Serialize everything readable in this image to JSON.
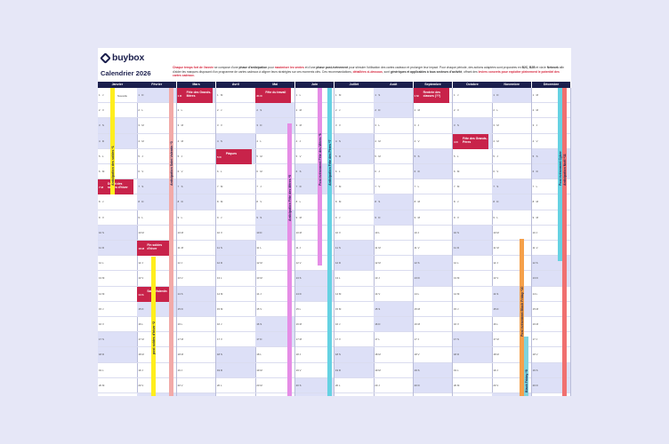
{
  "brand": {
    "name": "buybox"
  },
  "title": "Calendrier 2026",
  "intro": {
    "p1_red": "Chaque temps fort de l'année",
    "p1_a": " se compose d'une ",
    "p1_b": "phase d'anticipation",
    "p1_c": " pour ",
    "p1_red2": "maximiser les ventes",
    "p1_d": " et d'une ",
    "p1_e": "phase post-événement",
    "p1_f": " pour stimuler l'utilisation des cartes cadeaux et prolonger leur impact. Pour chaque période, des actions adaptées sont proposées en ",
    "p1_g": "B2C, B2B",
    "p1_h": " et via le ",
    "p1_i": "Network",
    "p1_j": " afin d'aider les marques disposant d'un programme de cartes cadeaux à aligner leurs stratégies sur ces moments clés. Ces recommandations, ",
    "p1_red3": "détaillées ci-dessous",
    "p1_k": ", sont ",
    "p1_l": "génériques et applicables à tous secteurs d'activité",
    "p1_m": ", offrant des ",
    "p1_red4": "leviers concrets pour exploiter pleinement le potentiel des cartes cadeaux."
  },
  "months": [
    "Janvier",
    "Février",
    "Mars",
    "Avril",
    "Mai",
    "Juin",
    "Juillet",
    "Août",
    "Septembre",
    "Octobre",
    "Novembre",
    "Décembre"
  ],
  "notes": {
    "jan1": "Nouvelle"
  },
  "events": [
    {
      "num": "1",
      "letter": "D",
      "label": "Fête des Grands-Mères"
    },
    {
      "num": "31",
      "letter": "D",
      "label": "Fête du travail"
    },
    {
      "num": "5",
      "letter": "D",
      "label": "Pâques"
    },
    {
      "num": "7",
      "letter": "M",
      "label": "Début des soldes d'hiver"
    },
    {
      "num": "18",
      "letter": "M",
      "label": "Fin soldes d'hiver"
    },
    {
      "num": "14",
      "letter": "S",
      "label": "Saint-Valentin"
    },
    {
      "num": "1",
      "letter": "M",
      "label": "Rentrée des classes (??)"
    },
    {
      "num": "4",
      "letter": "D",
      "label": "Fête des Grands-Pères"
    }
  ],
  "bars": [
    {
      "label": "Anticipation des soldes *1",
      "color": "#ffee1e"
    },
    {
      "label": "Anticipation Saint Valentin *3",
      "color": "#f2aaa8"
    },
    {
      "label": "événement Saint Valentin *4",
      "color": "#f2aaa8"
    },
    {
      "label": "post soldes d'hiver *2",
      "color": "#ffee1e"
    },
    {
      "label": "Anticipation Fête des Mères *5",
      "color": "#e58ee6"
    },
    {
      "label": "Post événement Fête des Mères *6",
      "color": "#e58ee6"
    },
    {
      "label": "Anticipation Fête des Pères *7",
      "color": "#66d2e2"
    },
    {
      "label": "Post événement Black Friday *10",
      "color": "#f5a04a"
    },
    {
      "label": "Post événement Cyber",
      "color": "#66d2e2"
    },
    {
      "label": "Anticipation Noël *11",
      "color": "#f07070"
    },
    {
      "label": "Black Friday *9",
      "color": "#7fd3dc"
    }
  ]
}
